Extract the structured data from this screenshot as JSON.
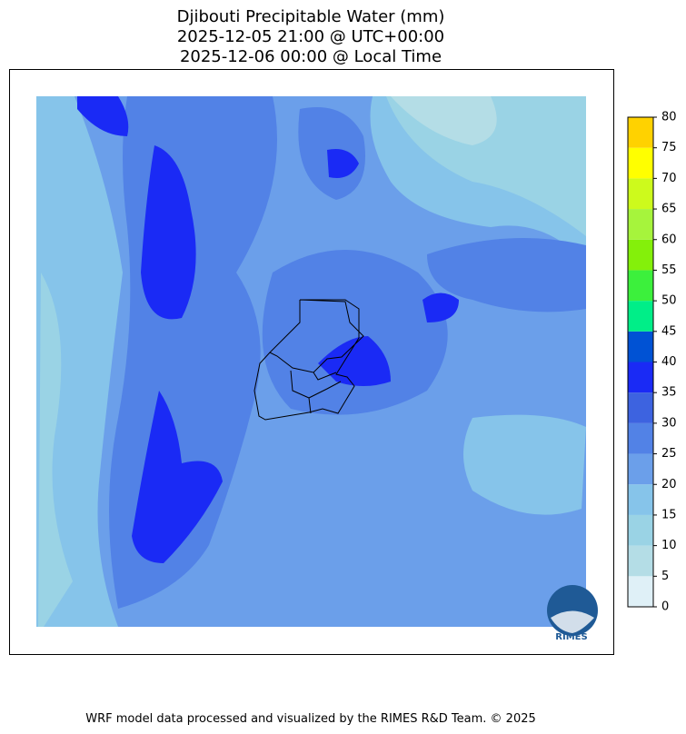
{
  "title": [
    "Djibouti Precipitable Water (mm)",
    "2025-12-05 21:00 @ UTC+00:00",
    "2025-12-06 00:00 @ Local Time"
  ],
  "colorbar": {
    "levels": [
      0,
      5,
      10,
      15,
      20,
      25,
      30,
      35,
      40,
      45,
      50,
      55,
      60,
      65,
      70,
      75,
      80
    ],
    "colors": [
      "#dff0f7",
      "#b4dde6",
      "#9ad3e5",
      "#86c4ea",
      "#6b9fea",
      "#5282e6",
      "#3d63e0",
      "#1a2af5",
      "#0052d4",
      "#00ee88",
      "#3cf03c",
      "#84f00a",
      "#a6f43c",
      "#cdfa1c",
      "#ffff00",
      "#ffd200"
    ]
  },
  "logo": "RIMES",
  "footer": "WRF model data processed and visualized by the RIMES R&D Team. © 2025"
}
